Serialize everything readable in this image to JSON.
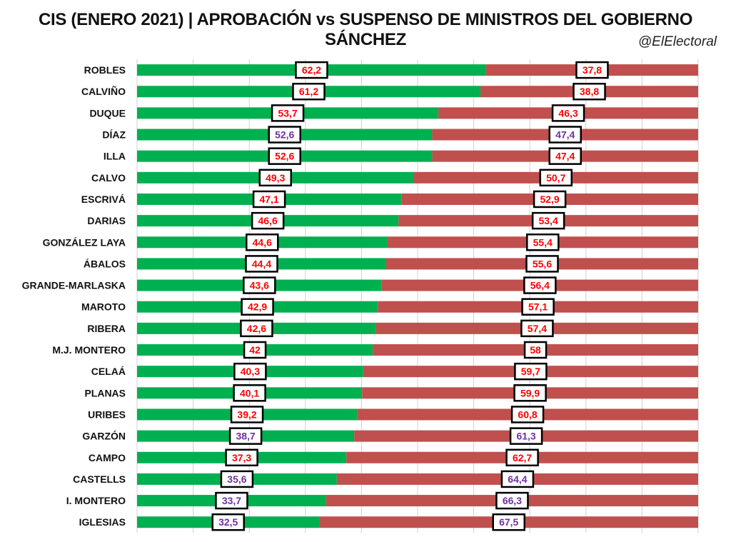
{
  "chart_data": {
    "type": "bar",
    "stacked": true,
    "orientation": "horizontal",
    "title": "CIS (ENERO 2021) | APROBACIÓN vs SUSPENSO DE MINISTROS DEL GOBIERNO SÁNCHEZ",
    "subtitle": "@ElElectoral",
    "xlim": [
      0,
      100
    ],
    "grid": true,
    "categories": [
      "ROBLES",
      "CALVIÑO",
      "DUQUE",
      "DÍAZ",
      "ILLA",
      "CALVO",
      "ESCRIVÁ",
      "DARIAS",
      "GONZÁLEZ LAYA",
      "ÁBALOS",
      "GRANDE-MARLASKA",
      "MAROTO",
      "RIBERA",
      "M.J. MONTERO",
      "CELAÁ",
      "PLANAS",
      "URIBES",
      "GARZÓN",
      "CAMPO",
      "CASTELLS",
      "I. MONTERO",
      "IGLESIAS"
    ],
    "series": [
      {
        "color": "#00b050",
        "values": [
          62.2,
          61.2,
          53.7,
          52.6,
          52.6,
          49.3,
          47.1,
          46.6,
          44.6,
          44.4,
          43.6,
          42.9,
          42.6,
          42,
          40.3,
          40.1,
          39.2,
          38.7,
          37.3,
          35.6,
          33.7,
          32.5
        ],
        "labels": [
          "62,2",
          "61,2",
          "53,7",
          "52,6",
          "52,6",
          "49,3",
          "47,1",
          "46,6",
          "44,6",
          "44,4",
          "43,6",
          "42,9",
          "42,6",
          "42",
          "40,3",
          "40,1",
          "39,2",
          "38,7",
          "37,3",
          "35,6",
          "33,7",
          "32,5"
        ]
      },
      {
        "color": "#c0504d",
        "values": [
          37.8,
          38.8,
          46.3,
          47.4,
          47.4,
          50.7,
          52.9,
          53.4,
          55.4,
          55.6,
          56.4,
          57.1,
          57.4,
          58,
          59.7,
          59.9,
          60.8,
          61.3,
          62.7,
          64.4,
          66.3,
          67.5
        ],
        "labels": [
          "37,8",
          "38,8",
          "46,3",
          "47,4",
          "47,4",
          "50,7",
          "52,9",
          "53,4",
          "55,4",
          "55,6",
          "56,4",
          "57,1",
          "57,4",
          "58",
          "59,7",
          "59,9",
          "60,8",
          "61,3",
          "62,7",
          "64,4",
          "66,3",
          "67,5"
        ]
      }
    ],
    "label_colors": {
      "red": "#ff0000",
      "purple": "#7030a0",
      "purple_rows": [
        "DÍAZ",
        "GARZÓN",
        "CASTELLS",
        "I. MONTERO",
        "IGLESIAS"
      ]
    }
  }
}
